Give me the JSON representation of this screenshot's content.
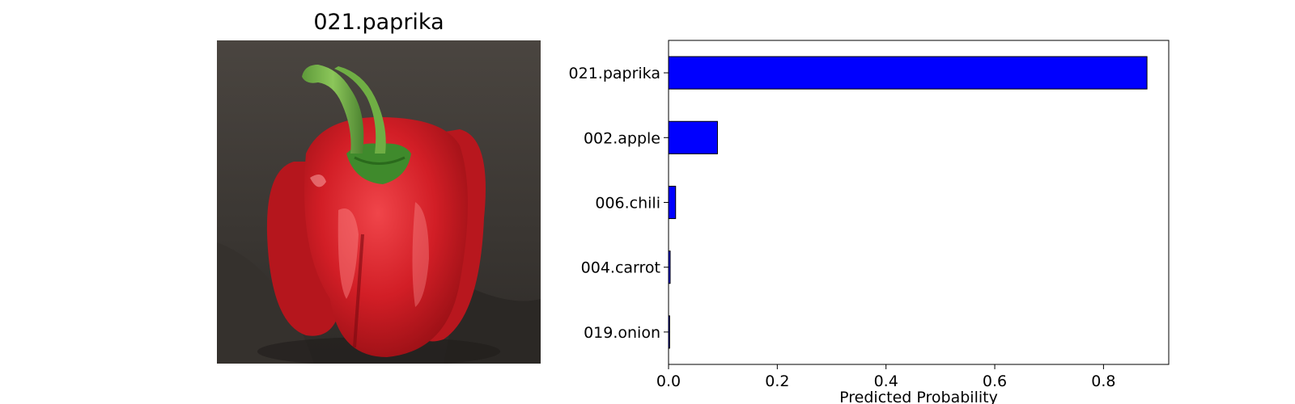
{
  "image_panel": {
    "title": "021.paprika",
    "photo_description_icon": "red-bell-pepper-photo"
  },
  "chart_data": {
    "type": "bar",
    "orientation": "horizontal",
    "categories": [
      "021.paprika",
      "002.apple",
      "006.chili",
      "004.carrot",
      "019.onion"
    ],
    "values": [
      0.88,
      0.09,
      0.013,
      0.003,
      0.002
    ],
    "title": "",
    "xlabel": "Predicted Probability",
    "ylabel": "",
    "xlim": [
      0.0,
      0.92
    ],
    "xticks": [
      "0.0",
      "0.2",
      "0.4",
      "0.6",
      "0.8"
    ],
    "grid": false,
    "bar_color": "#0000ff",
    "bar_edge_color": "#000000"
  }
}
